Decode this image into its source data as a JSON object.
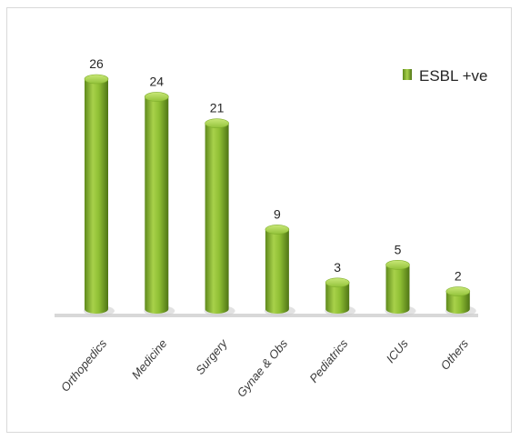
{
  "chart_data": {
    "type": "bar",
    "categories": [
      "Orthopedics",
      "Medicine",
      "Surgery",
      "Gynae & Obs",
      "Pediatrics",
      "ICUs",
      "Others"
    ],
    "series": [
      {
        "name": "ESBL +ve",
        "values": [
          26,
          24,
          21,
          9,
          3,
          5,
          2
        ]
      }
    ],
    "ylim": [
      0,
      26
    ],
    "grid": false,
    "legend": "top-right",
    "style": "3d-cylinder",
    "colors": {
      "bar_light": "#b7dc5a",
      "bar_mid": "#7fae2c",
      "bar_dark": "#4f7515",
      "baseline": "#d4d4d4"
    }
  }
}
